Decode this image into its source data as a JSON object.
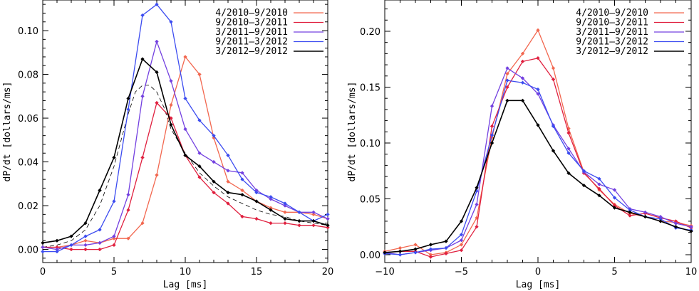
{
  "chart_data": [
    {
      "type": "line",
      "xlabel": "Lag [ms]",
      "ylabel": "dP/dt [dollars/ms]",
      "xlim": [
        0,
        20
      ],
      "ylim": [
        -0.006,
        0.114
      ],
      "xticks": [
        0,
        5,
        10,
        15,
        20
      ],
      "yticks": [
        0.0,
        0.02,
        0.04,
        0.06,
        0.08,
        0.1
      ],
      "ytick_labels": [
        "0.00",
        "0.02",
        "0.04",
        "0.06",
        "0.08",
        "0.10"
      ],
      "xtick_labels": [
        "0",
        "5",
        "10",
        "15",
        "20"
      ],
      "series": [
        {
          "name": "4/2010–9/2010",
          "color": "#f2674f",
          "x": [
            0,
            1,
            2,
            3,
            4,
            5,
            6,
            7,
            8,
            9,
            10,
            11,
            12,
            13,
            14,
            15,
            16,
            17,
            18,
            19,
            20
          ],
          "y": [
            0.001,
            0.001,
            0.002,
            0.004,
            0.003,
            0.005,
            0.005,
            0.012,
            0.034,
            0.066,
            0.088,
            0.08,
            0.051,
            0.031,
            0.027,
            0.022,
            0.019,
            0.017,
            0.017,
            0.016,
            0.014
          ]
        },
        {
          "name": "9/2010–3/2011",
          "color": "#e0203f",
          "x": [
            0,
            1,
            2,
            3,
            4,
            5,
            6,
            7,
            8,
            9,
            10,
            11,
            12,
            13,
            14,
            15,
            16,
            17,
            18,
            19,
            20
          ],
          "y": [
            0.001,
            0.001,
            0.0,
            0.0,
            0.0,
            0.002,
            0.018,
            0.042,
            0.067,
            0.06,
            0.043,
            0.033,
            0.026,
            0.021,
            0.015,
            0.014,
            0.012,
            0.012,
            0.011,
            0.011,
            0.01
          ]
        },
        {
          "name": "3/2011–9/2011",
          "color": "#7340e0",
          "x": [
            0,
            1,
            2,
            3,
            4,
            5,
            6,
            7,
            8,
            9,
            10,
            11,
            12,
            13,
            14,
            15,
            16,
            17,
            18,
            19,
            20
          ],
          "y": [
            0.001,
            0.0,
            0.002,
            0.002,
            0.003,
            0.006,
            0.025,
            0.07,
            0.095,
            0.077,
            0.055,
            0.044,
            0.04,
            0.036,
            0.035,
            0.027,
            0.023,
            0.02,
            0.017,
            0.017,
            0.014
          ]
        },
        {
          "name": "9/2011–3/2012",
          "color": "#3c4cf0",
          "x": [
            0,
            1,
            2,
            3,
            4,
            5,
            6,
            7,
            8,
            9,
            10,
            11,
            12,
            13,
            14,
            15,
            16,
            17,
            18,
            19,
            20
          ],
          "y": [
            -0.001,
            -0.001,
            0.002,
            0.006,
            0.009,
            0.022,
            0.064,
            0.107,
            0.112,
            0.104,
            0.069,
            0.059,
            0.052,
            0.043,
            0.032,
            0.026,
            0.024,
            0.021,
            0.017,
            0.013,
            0.016
          ]
        },
        {
          "name": "3/2012–9/2012",
          "color": "#000000",
          "x": [
            0,
            1,
            2,
            3,
            4,
            5,
            6,
            7,
            8,
            9,
            10,
            11,
            12,
            13,
            14,
            15,
            16,
            17,
            18,
            19,
            20
          ],
          "y": [
            0.003,
            0.004,
            0.006,
            0.012,
            0.027,
            0.042,
            0.069,
            0.087,
            0.081,
            0.057,
            0.043,
            0.038,
            0.031,
            0.026,
            0.025,
            0.022,
            0.018,
            0.014,
            0.013,
            0.013,
            0.011
          ]
        }
      ],
      "reference_curve": {
        "style": "dashed",
        "color": "#000000",
        "x": [
          0,
          1,
          2,
          3,
          4,
          5,
          5.5,
          6,
          6.5,
          7,
          7.5,
          8,
          8.5,
          9,
          10,
          11,
          12,
          13,
          14,
          15,
          16,
          17,
          18,
          19,
          20
        ],
        "y": [
          0.001,
          0.002,
          0.004,
          0.009,
          0.02,
          0.038,
          0.05,
          0.062,
          0.072,
          0.075,
          0.075,
          0.072,
          0.065,
          0.055,
          0.044,
          0.035,
          0.029,
          0.024,
          0.021,
          0.018,
          0.016,
          0.015,
          0.013,
          0.012,
          0.011
        ]
      }
    },
    {
      "type": "line",
      "xlabel": "Lag [ms]",
      "ylabel": "dP/dt [dollars/ms]",
      "xlim": [
        -10,
        10
      ],
      "ylim": [
        -0.007,
        0.228
      ],
      "xticks": [
        -10,
        -5,
        0,
        5,
        10
      ],
      "yticks": [
        0.0,
        0.05,
        0.1,
        0.15,
        0.2
      ],
      "ytick_labels": [
        "0.00",
        "0.05",
        "0.10",
        "0.15",
        "0.20"
      ],
      "xtick_labels": [
        "−10",
        "−5",
        "0",
        "5",
        "10"
      ],
      "series": [
        {
          "name": "4/2010–9/2010",
          "color": "#f2674f",
          "x": [
            -10,
            -9,
            -8,
            -7,
            -6,
            -5,
            -4,
            -3,
            -2,
            -1,
            0,
            1,
            2,
            3,
            4,
            5,
            6,
            7,
            8,
            9,
            10
          ],
          "y": [
            0.003,
            0.006,
            0.009,
            0.0,
            0.002,
            0.009,
            0.033,
            0.105,
            0.162,
            0.18,
            0.201,
            0.167,
            0.113,
            0.074,
            0.058,
            0.045,
            0.037,
            0.034,
            0.03,
            0.029,
            0.026
          ]
        },
        {
          "name": "9/2010–3/2011",
          "color": "#e0203f",
          "x": [
            -10,
            -9,
            -8,
            -7,
            -6,
            -5,
            -4,
            -3,
            -2,
            -1,
            0,
            1,
            2,
            3,
            4,
            5,
            6,
            7,
            8,
            9,
            10
          ],
          "y": [
            0.002,
            0.003,
            0.003,
            -0.002,
            0.001,
            0.004,
            0.025,
            0.115,
            0.15,
            0.173,
            0.176,
            0.157,
            0.109,
            0.073,
            0.059,
            0.044,
            0.035,
            0.037,
            0.033,
            0.03,
            0.024
          ]
        },
        {
          "name": "3/2011–9/2011",
          "color": "#7340e0",
          "x": [
            -10,
            -9,
            -8,
            -7,
            -6,
            -5,
            -4,
            -3,
            -2,
            -1,
            0,
            1,
            2,
            3,
            4,
            5,
            6,
            7,
            8,
            9,
            10
          ],
          "y": [
            0.002,
            0.0,
            0.002,
            0.004,
            0.006,
            0.013,
            0.045,
            0.133,
            0.167,
            0.158,
            0.144,
            0.116,
            0.095,
            0.074,
            0.063,
            0.058,
            0.041,
            0.038,
            0.034,
            0.028,
            0.025
          ]
        },
        {
          "name": "9/2011–3/2012",
          "color": "#3c4cf0",
          "x": [
            -10,
            -9,
            -8,
            -7,
            -6,
            -5,
            -4,
            -3,
            -2,
            -1,
            0,
            1,
            2,
            3,
            4,
            5,
            6,
            7,
            8,
            9,
            10
          ],
          "y": [
            0.001,
            0.0,
            0.002,
            0.005,
            0.006,
            0.018,
            0.057,
            0.107,
            0.156,
            0.154,
            0.148,
            0.115,
            0.091,
            0.075,
            0.068,
            0.051,
            0.04,
            0.034,
            0.032,
            0.024,
            0.022
          ]
        },
        {
          "name": "3/2012–9/2012",
          "color": "#000000",
          "x": [
            -10,
            -9,
            -8,
            -7,
            -6,
            -5,
            -4,
            -3,
            -2,
            -1,
            0,
            1,
            2,
            3,
            4,
            5,
            6,
            7,
            8,
            9,
            10
          ],
          "y": [
            0.002,
            0.003,
            0.005,
            0.009,
            0.012,
            0.03,
            0.06,
            0.1,
            0.138,
            0.138,
            0.116,
            0.093,
            0.073,
            0.062,
            0.053,
            0.042,
            0.038,
            0.034,
            0.03,
            0.025,
            0.021
          ]
        }
      ]
    }
  ]
}
